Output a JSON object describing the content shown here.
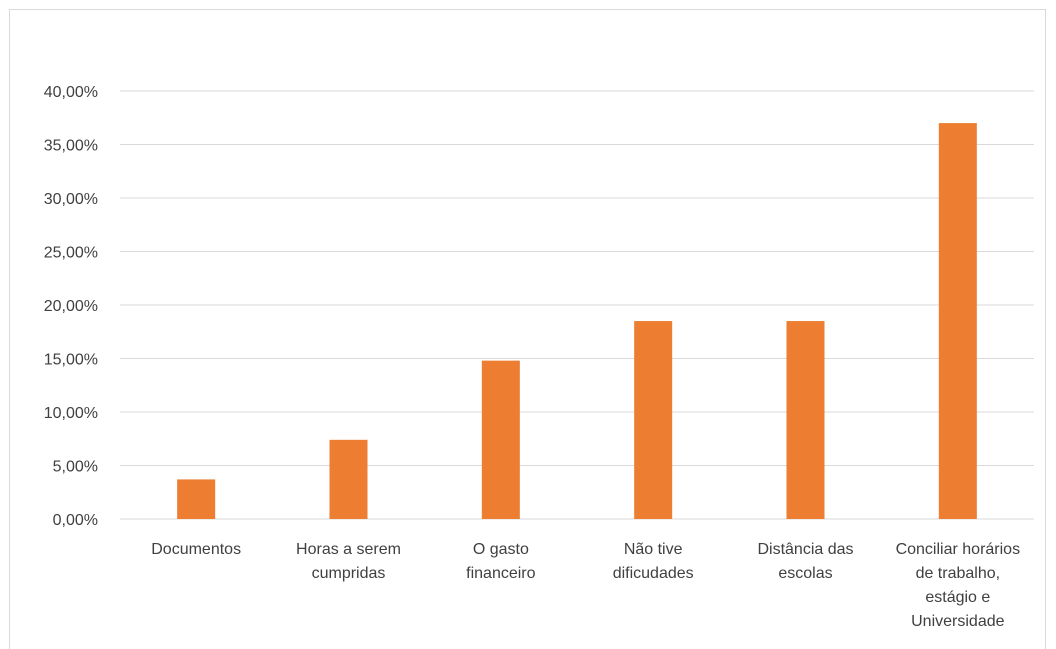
{
  "chart_data": {
    "type": "bar",
    "title": "",
    "xlabel": "",
    "ylabel": "",
    "categories": [
      [
        "Documentos"
      ],
      [
        "Horas a serem",
        "cumpridas"
      ],
      [
        "O gasto",
        "financeiro"
      ],
      [
        "Não tive",
        "dificudades"
      ],
      [
        "Distância das",
        "escolas"
      ],
      [
        "Conciliar horários",
        "de trabalho,",
        "estágio e",
        "Universidade"
      ]
    ],
    "values": [
      3.7,
      7.4,
      14.8,
      18.5,
      18.5,
      37.0
    ],
    "ylim": [
      0,
      40
    ],
    "yticks": [
      0,
      5,
      10,
      15,
      20,
      25,
      30,
      35,
      40
    ],
    "ytick_labels": [
      "0,00%",
      "5,00%",
      "10,00%",
      "15,00%",
      "20,00%",
      "25,00%",
      "30,00%",
      "35,00%",
      "40,00%"
    ],
    "grid": true,
    "legend": "none",
    "bar_color": "#ED7D31",
    "grid_color": "#d9d9d9",
    "text_color": "#404040"
  }
}
